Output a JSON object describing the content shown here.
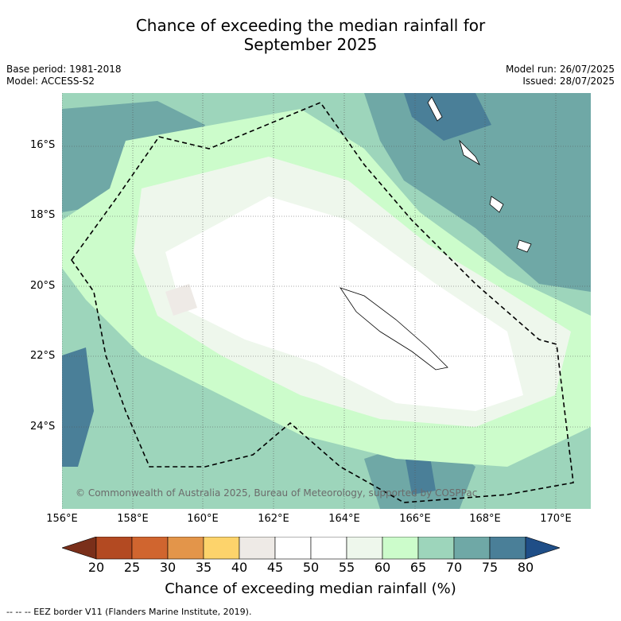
{
  "title_line1": "Chance of exceeding the median rainfall for",
  "title_line2": "September 2025",
  "meta": {
    "base_period": "Base period: 1981-2018",
    "model": "Model: ACCESS-S2",
    "model_run": "Model run: 26/07/2025",
    "issued": "Issued: 28/07/2025"
  },
  "lat_labels": [
    "16°S",
    "18°S",
    "20°S",
    "22°S",
    "24°S"
  ],
  "lon_labels": [
    "156°E",
    "158°E",
    "160°E",
    "162°E",
    "164°E",
    "166°E",
    "168°E",
    "170°E"
  ],
  "copyright": "© Commonwealth of Australia 2025, Bureau of Meteorology, supported by COSPPac",
  "colorbar": {
    "ticks": [
      "20",
      "25",
      "30",
      "35",
      "40",
      "45",
      "50",
      "55",
      "60",
      "65",
      "70",
      "75",
      "80"
    ],
    "label": "Chance of exceeding median rainfall (%)",
    "colors": [
      "#7a2f1a",
      "#b34a22",
      "#d0652f",
      "#e3954a",
      "#fdd36b",
      "#eeeae6",
      "#ffffff",
      "#ffffff",
      "#eef7ec",
      "#ccfccb",
      "#9dd5bb",
      "#6fa8a6",
      "#4a7f98",
      "#1f4e87"
    ]
  },
  "legend_text": "--  --  -- EEZ border V11 (Flanders Marine Institute, 2019)."
}
